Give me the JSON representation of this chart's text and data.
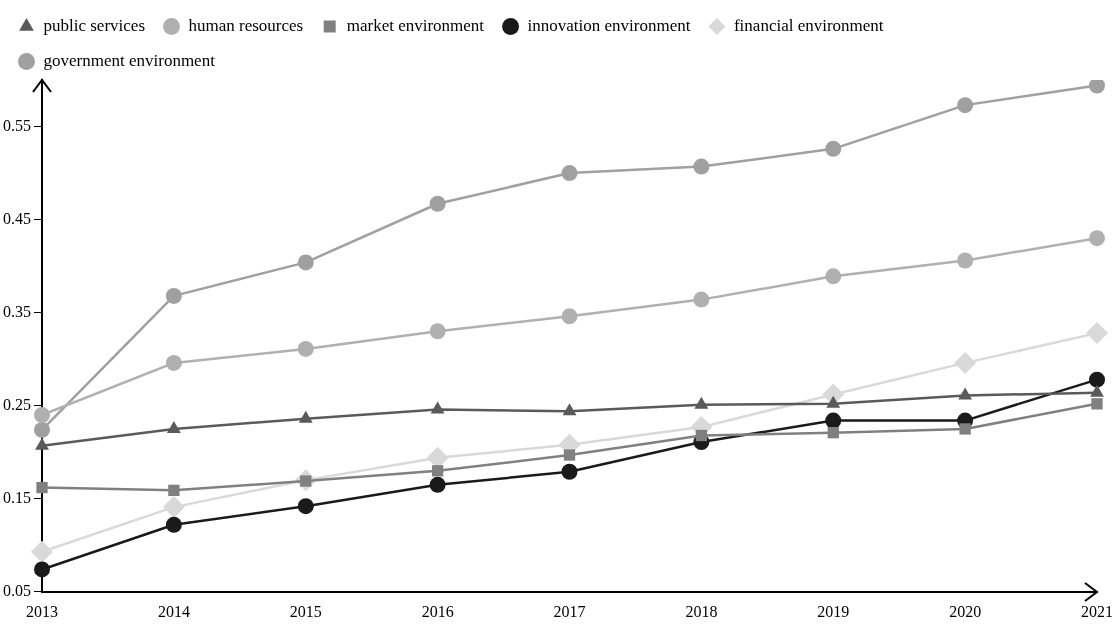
{
  "chart_data": {
    "type": "line",
    "categories": [
      "2013",
      "2014",
      "2015",
      "2016",
      "2017",
      "2018",
      "2019",
      "2020",
      "2021"
    ],
    "series": [
      {
        "name": "public services",
        "color": "#5a5a5a",
        "marker": "triangle",
        "values": [
          0.207,
          0.225,
          0.236,
          0.246,
          0.244,
          0.251,
          0.252,
          0.261,
          0.264
        ]
      },
      {
        "name": "human resources",
        "color": "#b0b0b0",
        "marker": "circle",
        "values": [
          0.24,
          0.296,
          0.311,
          0.33,
          0.346,
          0.364,
          0.389,
          0.406,
          0.43
        ]
      },
      {
        "name": "market environment",
        "color": "#808080",
        "marker": "square",
        "values": [
          0.162,
          0.159,
          0.169,
          0.18,
          0.197,
          0.218,
          0.221,
          0.225,
          0.252
        ]
      },
      {
        "name": "innovation environment",
        "color": "#1a1a1a",
        "marker": "circle",
        "values": [
          0.074,
          0.122,
          0.142,
          0.165,
          0.179,
          0.211,
          0.234,
          0.234,
          0.278
        ]
      },
      {
        "name": "financial environment",
        "color": "#d9d9d9",
        "marker": "diamond",
        "values": [
          0.093,
          0.141,
          0.17,
          0.194,
          0.208,
          0.227,
          0.262,
          0.296,
          0.328
        ]
      },
      {
        "name": "government environment",
        "color": "#a0a0a0",
        "marker": "circle",
        "values": [
          0.224,
          0.368,
          0.404,
          0.467,
          0.5,
          0.507,
          0.526,
          0.573,
          0.594
        ]
      }
    ],
    "ylim": [
      0.05,
      0.6
    ],
    "yticks": [
      0.05,
      0.15,
      0.25,
      0.35,
      0.45,
      0.55
    ],
    "grid": false,
    "legend": "top left"
  }
}
